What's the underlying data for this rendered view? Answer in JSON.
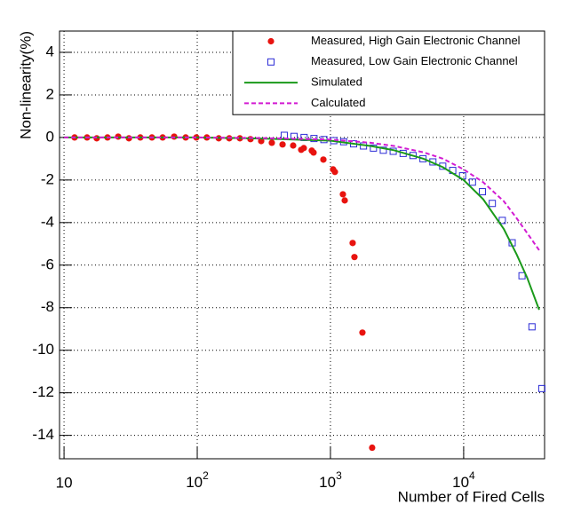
{
  "chart_data": {
    "type": "scatter",
    "xlabel": "Number of Fired Cells",
    "ylabel": "Non-linearity(%)",
    "xscale": "log",
    "grid": true,
    "legend": "upper right",
    "xlim": [
      9.25,
      40500
    ],
    "ylim": [
      -15.1,
      5
    ],
    "xticks": [
      10,
      {
        "value": 100,
        "label": "10",
        "exponent": "2"
      },
      {
        "value": 1000,
        "label": "10",
        "exponent": "3"
      },
      {
        "value": 10000,
        "label": "10",
        "exponent": "4"
      }
    ],
    "yticks": [
      4,
      2,
      0,
      -2,
      -4,
      -6,
      -8,
      -10,
      -12,
      -14
    ],
    "series": [
      {
        "name": "Measured, High Gain Electronic Channel",
        "color": "#e8130f",
        "marker": "circle",
        "x": [
          12.0,
          14.9,
          17.6,
          21.2,
          25.5,
          30.7,
          37.4,
          45.7,
          55,
          67.1,
          81.9,
          98.5,
          118,
          145,
          174,
          209,
          251,
          302,
          363,
          437,
          525,
          603,
          631,
          724,
          747,
          885,
          1047,
          1080,
          1240,
          1280,
          1468,
          1514,
          1738,
          2056
        ],
        "values": [
          0,
          0,
          -0.04,
          0,
          0.04,
          -0.04,
          0,
          0,
          0,
          0.04,
          0,
          0,
          0,
          -0.04,
          -0.04,
          -0.04,
          -0.08,
          -0.17,
          -0.25,
          -0.33,
          -0.38,
          -0.58,
          -0.5,
          -0.62,
          -0.71,
          -1.04,
          -1.5,
          -1.62,
          -2.67,
          -2.96,
          -4.96,
          -5.62,
          -9.17,
          -14.58
        ]
      },
      {
        "name": "Measured, Low Gain Electronic Channel",
        "color": "#2b2bd6",
        "marker": "square",
        "x": [
          450,
          533,
          634,
          752,
          893,
          1059,
          1256,
          1492,
          1770,
          2102,
          2494,
          2958,
          3513,
          4169,
          4951,
          5875,
          6966,
          8276,
          9817,
          11640,
          13830,
          16410,
          19500,
          23120,
          27420,
          32580,
          38640
        ],
        "values": [
          0.1,
          0.05,
          0,
          -0.05,
          -0.1,
          -0.15,
          -0.2,
          -0.3,
          -0.4,
          -0.5,
          -0.6,
          -0.65,
          -0.75,
          -0.85,
          -1.0,
          -1.15,
          -1.35,
          -1.55,
          -1.8,
          -2.1,
          -2.55,
          -3.1,
          -3.9,
          -4.95,
          -6.5,
          -8.9,
          -11.8
        ]
      },
      {
        "name": "Simulated",
        "color": "#1a9a1a",
        "marker": "line",
        "x": [
          10,
          100,
          300,
          1000,
          2000,
          3000,
          5000,
          7000,
          10000,
          14000,
          20000,
          25000,
          30000,
          36900
        ],
        "values": [
          0,
          0,
          -0.05,
          -0.15,
          -0.4,
          -0.6,
          -1.0,
          -1.4,
          -2.0,
          -2.9,
          -4.3,
          -5.5,
          -6.6,
          -8.1
        ]
      },
      {
        "name": "Calculated",
        "color": "#d21bd2",
        "marker": "dashed",
        "x": [
          10,
          100,
          300,
          1000,
          2000,
          3000,
          5000,
          7000,
          10000,
          14000,
          20000,
          25000,
          30000,
          36900
        ],
        "values": [
          0,
          0,
          -0.03,
          -0.1,
          -0.25,
          -0.4,
          -0.7,
          -1.0,
          -1.5,
          -2.1,
          -3.0,
          -3.8,
          -4.5,
          -5.3
        ]
      }
    ]
  }
}
